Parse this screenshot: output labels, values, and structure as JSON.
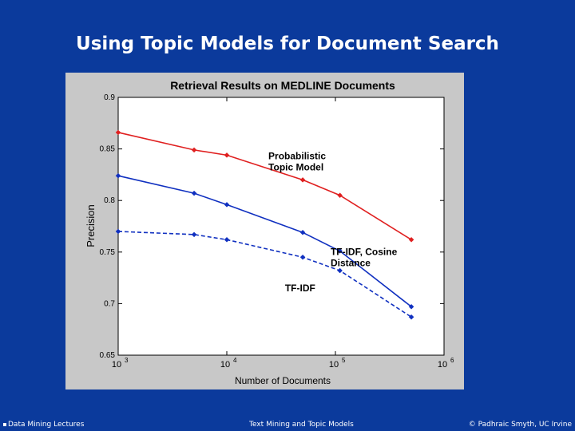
{
  "slide": {
    "title": "Using Topic Models for Document Search"
  },
  "footer": {
    "left": "Data Mining Lectures",
    "center": "Text Mining and Topic Models",
    "right": "© Padhraic Smyth, UC Irvine"
  },
  "chart_data": {
    "type": "line",
    "title": "Retrieval Results on MEDLINE Documents",
    "xlabel": "Number of Documents",
    "ylabel": "Precision",
    "xscale": "log",
    "xlim": [
      1000,
      1000000
    ],
    "ylim": [
      0.65,
      0.9
    ],
    "xticks": [
      {
        "value": 1000,
        "base": "10",
        "exp": "3"
      },
      {
        "value": 10000,
        "base": "10",
        "exp": "4"
      },
      {
        "value": 100000,
        "base": "10",
        "exp": "5"
      },
      {
        "value": 1000000,
        "base": "10",
        "exp": "6"
      }
    ],
    "yticks": [
      {
        "value": 0.65,
        "label": "0.65"
      },
      {
        "value": 0.7,
        "label": "0.7"
      },
      {
        "value": 0.75,
        "label": "0.75"
      },
      {
        "value": 0.8,
        "label": "0.8"
      },
      {
        "value": 0.85,
        "label": "0.85"
      },
      {
        "value": 0.9,
        "label": "0.9"
      }
    ],
    "grid": false,
    "series": [
      {
        "name": "Probabilistic Topic Model",
        "label_lines": [
          "Probabilistic",
          "Topic Model"
        ],
        "color": "#e02020",
        "dash": "solid",
        "x": [
          1000,
          5000,
          10000,
          50000,
          110000,
          500000
        ],
        "y": [
          0.866,
          0.849,
          0.844,
          0.82,
          0.805,
          0.762
        ]
      },
      {
        "name": "TF-IDF, Cosine Distance",
        "label_lines": [
          "TF-IDF, Cosine",
          "Distance"
        ],
        "color": "#1030c0",
        "dash": "solid",
        "x": [
          1000,
          5000,
          10000,
          50000,
          110000,
          500000
        ],
        "y": [
          0.824,
          0.807,
          0.796,
          0.769,
          0.751,
          0.697
        ]
      },
      {
        "name": "TF-IDF",
        "label_lines": [
          "TF-IDF"
        ],
        "color": "#1030c0",
        "dash": "dashed",
        "x": [
          1000,
          5000,
          10000,
          50000,
          110000,
          500000
        ],
        "y": [
          0.77,
          0.767,
          0.762,
          0.745,
          0.732,
          0.687
        ]
      }
    ]
  }
}
